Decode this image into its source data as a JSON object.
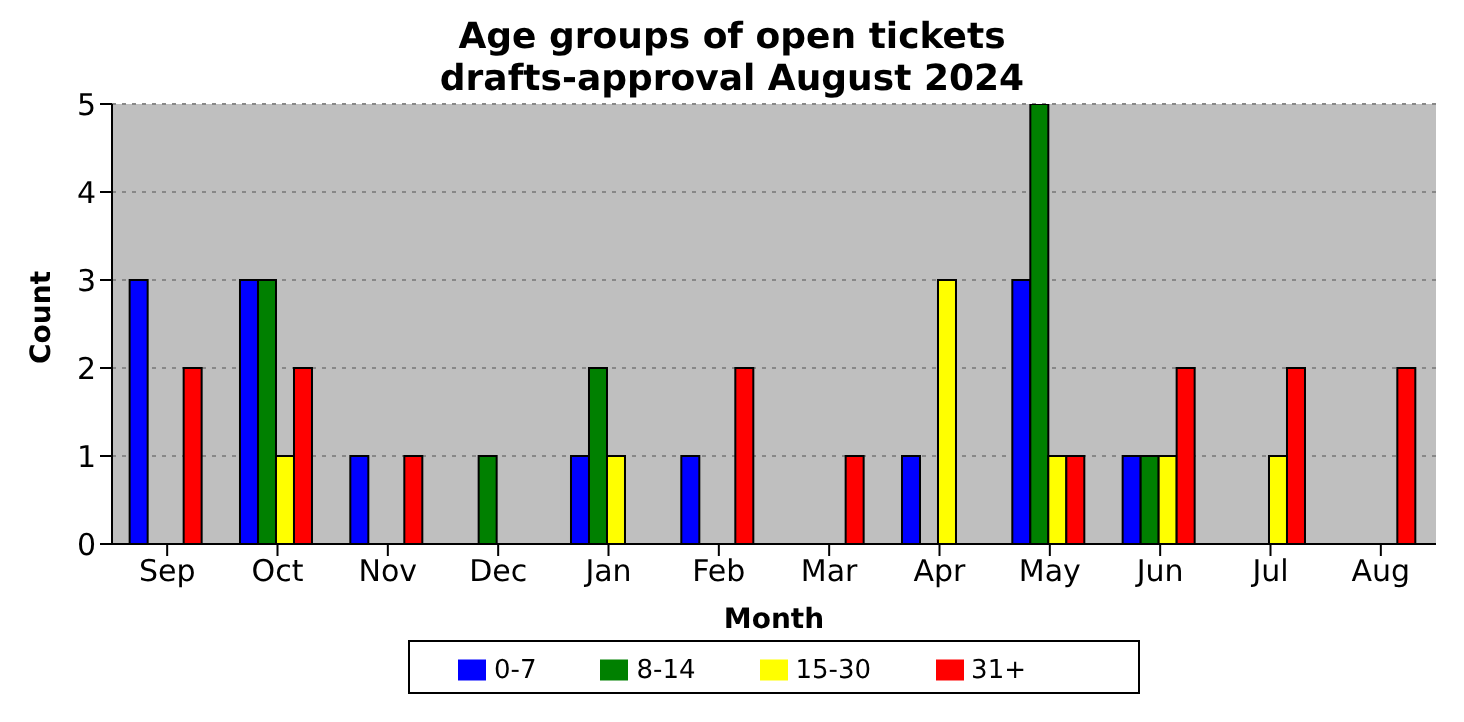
{
  "chart_data": {
    "type": "bar",
    "title": "Age groups of open tickets\ndrafts-approval August 2024",
    "xlabel": "Month",
    "ylabel": "Count",
    "categories": [
      "Sep",
      "Oct",
      "Nov",
      "Dec",
      "Jan",
      "Feb",
      "Mar",
      "Apr",
      "May",
      "Jun",
      "Jul",
      "Aug"
    ],
    "series": [
      {
        "name": "0-7",
        "color": "#0000ff",
        "values": [
          3,
          3,
          1,
          0,
          1,
          1,
          0,
          1,
          3,
          1,
          0,
          0
        ]
      },
      {
        "name": "8-14",
        "color": "#008000",
        "values": [
          0,
          3,
          0,
          1,
          2,
          0,
          0,
          0,
          5,
          1,
          0,
          0
        ]
      },
      {
        "name": "15-30",
        "color": "#ffff00",
        "values": [
          0,
          1,
          0,
          0,
          1,
          0,
          0,
          3,
          1,
          1,
          1,
          0
        ]
      },
      {
        "name": "31+",
        "color": "#ff0000",
        "values": [
          2,
          2,
          1,
          0,
          0,
          2,
          1,
          0,
          1,
          2,
          2,
          2
        ]
      }
    ],
    "ylim": [
      0,
      5
    ],
    "yticks": [
      0,
      1,
      2,
      3,
      4,
      5
    ],
    "grid": "y",
    "legend": "bottom"
  }
}
